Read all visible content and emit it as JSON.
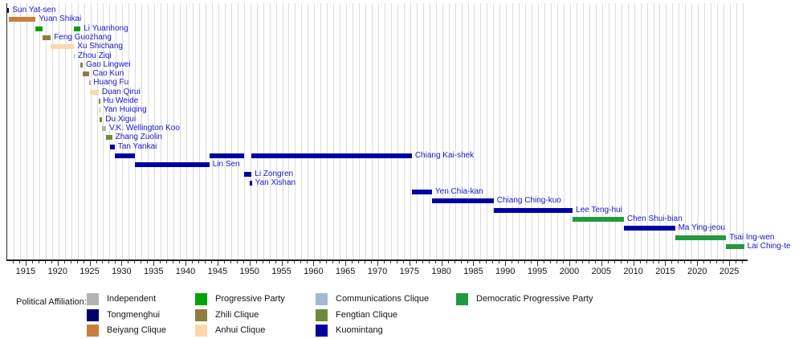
{
  "chart_data": {
    "type": "gantt",
    "title": "",
    "xlabel": "",
    "ylabel": "",
    "grid": "vertical, 1-year interval",
    "x_axis": {
      "min": 1912,
      "max": 2027.75,
      "minor_tick_interval": 1,
      "major_tick_interval": 5,
      "tick_labels": [
        1915,
        1920,
        1925,
        1930,
        1935,
        1940,
        1945,
        1950,
        1955,
        1960,
        1965,
        1970,
        1975,
        1980,
        1985,
        1990,
        1995,
        2000,
        2005,
        2010,
        2015,
        2020,
        2025
      ]
    },
    "parties": {
      "independent": {
        "label": "Independent",
        "color": "#b3b3b3"
      },
      "tongmenghui": {
        "label": "Tongmenghui",
        "color": "#000066"
      },
      "beiyang": {
        "label": "Beiyang Clique",
        "color": "#c87f3c"
      },
      "progressive": {
        "label": "Progressive Party",
        "color": "#00a303"
      },
      "zhili": {
        "label": "Zhili Clique",
        "color": "#8f7d40"
      },
      "anhui": {
        "label": "Anhui Clique",
        "color": "#fbd9a6"
      },
      "communications": {
        "label": "Communications Clique",
        "color": "#a4b9d1"
      },
      "fengtian": {
        "label": "Fengtian Clique",
        "color": "#6f8a3d"
      },
      "kuomintang": {
        "label": "Kuomintang",
        "color": "#0000a2"
      },
      "dpp": {
        "label": "Democratic Progressive Party",
        "color": "#22993e"
      }
    },
    "legend": {
      "title": "Political Affiliation:",
      "position": "bottom",
      "columns": [
        [
          "independent",
          "tongmenghui",
          "beiyang"
        ],
        [
          "progressive",
          "zhili",
          "anhui"
        ],
        [
          "communications",
          "fengtian",
          "kuomintang"
        ],
        [
          "dpp"
        ]
      ]
    },
    "leaders": [
      {
        "name": "Sun Yat-sen",
        "party": "tongmenghui",
        "segments": [
          [
            1912.0,
            1912.3
          ]
        ]
      },
      {
        "name": "Yuan Shikai",
        "party": "beiyang",
        "segments": [
          [
            1912.2,
            1916.45
          ]
        ]
      },
      {
        "name": "Li Yuanhong",
        "party": "progressive",
        "segments": [
          [
            1916.45,
            1917.55
          ],
          [
            1922.45,
            1923.45
          ]
        ]
      },
      {
        "name": "Feng Guozhang",
        "party": "zhili",
        "segments": [
          [
            1917.55,
            1918.8
          ]
        ]
      },
      {
        "name": "Xu Shichang",
        "party": "anhui",
        "segments": [
          [
            1918.8,
            1922.45
          ]
        ]
      },
      {
        "name": "Zhou Ziqi",
        "party": "communications",
        "segments": [
          [
            1922.42,
            1922.55
          ]
        ]
      },
      {
        "name": "Gao Lingwei",
        "party": "zhili",
        "segments": [
          [
            1923.45,
            1923.8
          ]
        ]
      },
      {
        "name": "Cao Kun",
        "party": "zhili",
        "segments": [
          [
            1923.8,
            1924.85
          ]
        ]
      },
      {
        "name": "Huang Fu",
        "party": "independent",
        "segments": [
          [
            1924.85,
            1924.97
          ]
        ]
      },
      {
        "name": "Duan Qirui",
        "party": "anhui",
        "segments": [
          [
            1924.9,
            1926.3
          ]
        ]
      },
      {
        "name": "Hu Weide",
        "party": "zhili",
        "segments": [
          [
            1926.35,
            1926.5
          ]
        ]
      },
      {
        "name": "Yan Huiqing",
        "party": "independent",
        "segments": [
          [
            1926.4,
            1926.55
          ]
        ]
      },
      {
        "name": "Du Xigui",
        "party": "fengtian",
        "segments": [
          [
            1926.5,
            1926.85
          ]
        ]
      },
      {
        "name": "V.K. Wellington Koo",
        "party": "independent",
        "segments": [
          [
            1926.8,
            1927.45
          ]
        ]
      },
      {
        "name": "Zhang Zuolin",
        "party": "fengtian",
        "segments": [
          [
            1927.45,
            1928.4
          ]
        ]
      },
      {
        "name": "Tan Yankai",
        "party": "kuomintang",
        "segments": [
          [
            1928.1,
            1928.8
          ]
        ]
      },
      {
        "name": "Chiang Kai-shek",
        "party": "kuomintang",
        "segments": [
          [
            1928.8,
            1931.95
          ],
          [
            1943.6,
            1949.05
          ],
          [
            1950.2,
            1975.25
          ]
        ]
      },
      {
        "name": "Lin Sen",
        "party": "kuomintang",
        "segments": [
          [
            1931.95,
            1943.6
          ]
        ]
      },
      {
        "name": "Li Zongren",
        "party": "kuomintang",
        "segments": [
          [
            1949.05,
            1950.2
          ]
        ]
      },
      {
        "name": "Yan Xishan",
        "party": "kuomintang",
        "segments": [
          [
            1949.9,
            1950.25
          ]
        ]
      },
      {
        "name": "Yen Chia-kan",
        "party": "kuomintang",
        "segments": [
          [
            1975.25,
            1978.4
          ]
        ]
      },
      {
        "name": "Chiang Ching-kuo",
        "party": "kuomintang",
        "segments": [
          [
            1978.4,
            1988.05
          ]
        ]
      },
      {
        "name": "Lee Teng-hui",
        "party": "kuomintang",
        "segments": [
          [
            1988.05,
            2000.4
          ]
        ]
      },
      {
        "name": "Chen Shui-bian",
        "party": "dpp",
        "segments": [
          [
            2000.4,
            2008.4
          ]
        ]
      },
      {
        "name": "Ma Ying-jeou",
        "party": "kuomintang",
        "segments": [
          [
            2008.4,
            2016.4
          ]
        ]
      },
      {
        "name": "Tsai Ing-wen",
        "party": "dpp",
        "segments": [
          [
            2016.4,
            2024.4
          ]
        ]
      },
      {
        "name": "Lai Ching-te",
        "party": "dpp",
        "segments": [
          [
            2024.4,
            2027.2
          ]
        ]
      }
    ],
    "colors": {
      "leader_label_text": "#1717cd",
      "axis_text": "#151515",
      "gridline": "#dcdcdc",
      "background": "#ffffff"
    }
  }
}
